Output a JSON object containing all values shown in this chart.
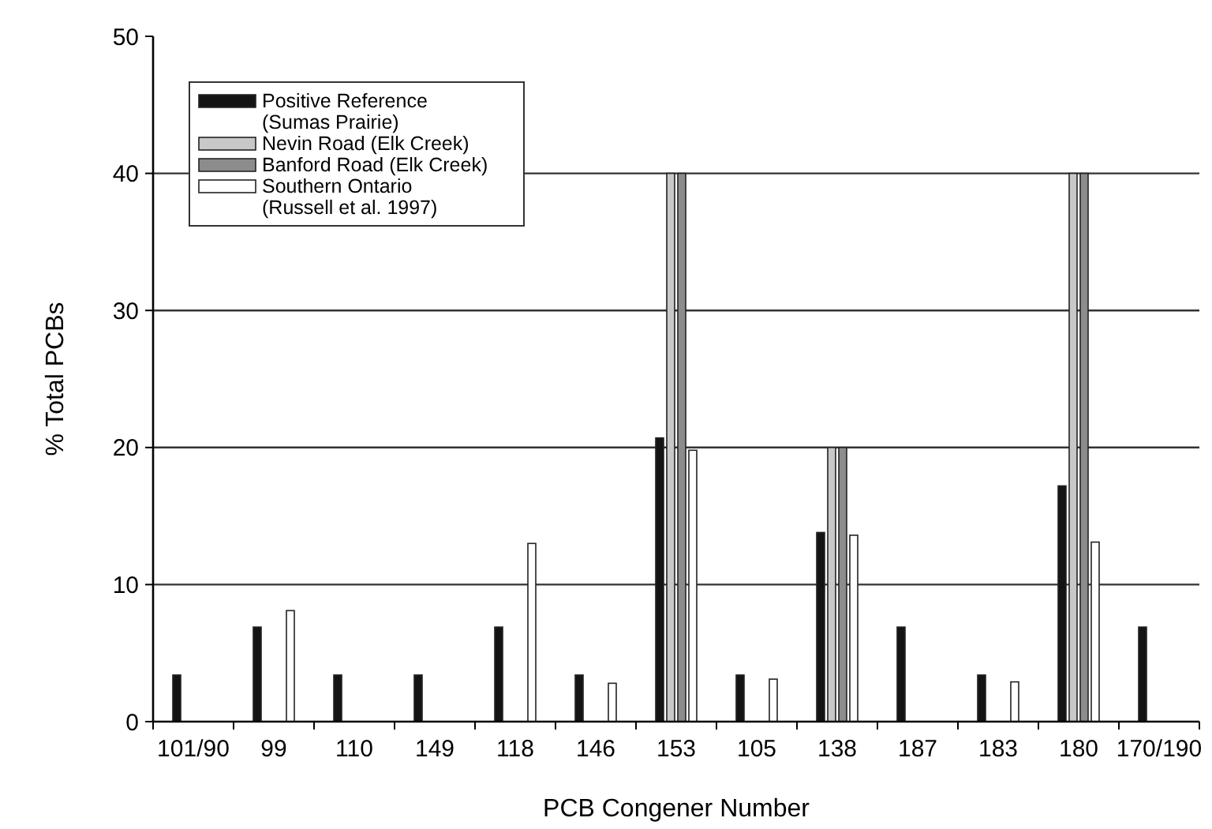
{
  "chart_data": {
    "type": "bar",
    "xlabel": "PCB Congener Number",
    "ylabel": "% Total PCBs",
    "categories": [
      "101/90",
      "99",
      "110",
      "149",
      "118",
      "146",
      "153",
      "105",
      "138",
      "187",
      "183",
      "180",
      "170/190"
    ],
    "series": [
      {
        "name": "Positive Reference\n(Sumas Prairie)",
        "color": "#141414",
        "values": [
          3.4,
          6.9,
          3.4,
          3.4,
          6.9,
          3.4,
          20.7,
          3.4,
          13.8,
          6.9,
          3.4,
          17.2,
          6.9
        ]
      },
      {
        "name": "Nevin Road (Elk Creek)",
        "color": "#c8c8c8",
        "values": [
          null,
          null,
          null,
          null,
          null,
          null,
          40,
          null,
          20,
          null,
          null,
          40,
          null
        ]
      },
      {
        "name": "Banford Road (Elk Creek)",
        "color": "#8c8c8c",
        "values": [
          null,
          null,
          null,
          null,
          null,
          null,
          40,
          null,
          20,
          null,
          null,
          40,
          null
        ]
      },
      {
        "name": "Southern Ontario\n(Russell et al. 1997)",
        "color": "#ffffff",
        "values": [
          null,
          8.1,
          null,
          null,
          13,
          2.8,
          19.8,
          3.1,
          13.6,
          null,
          2.9,
          13.1,
          null
        ]
      }
    ],
    "ylim": [
      0,
      50
    ],
    "yticks": [
      0,
      10,
      20,
      30,
      40,
      50
    ],
    "grid": "y",
    "legend": "top left"
  }
}
